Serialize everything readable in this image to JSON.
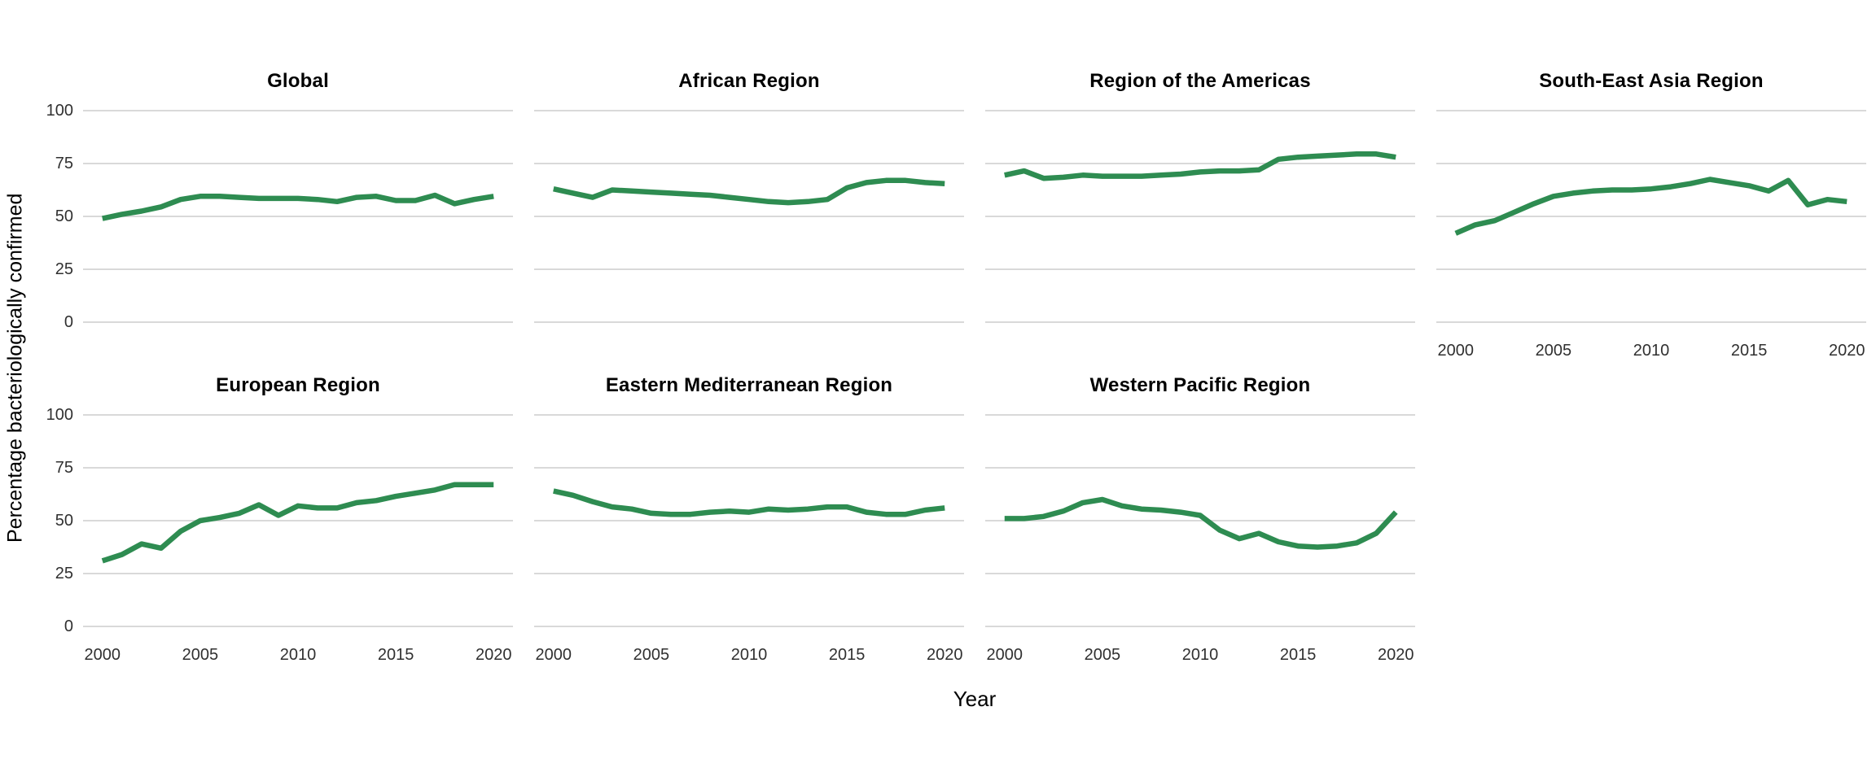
{
  "figure": {
    "y_axis_title": "Percentage bacteriologically confirmed",
    "x_axis_title": "Year",
    "y_ticks": [
      100,
      75,
      50,
      25,
      0
    ],
    "x_ticks": [
      2000,
      2005,
      2010,
      2015,
      2020
    ],
    "line_color": "#2e8c51",
    "gridline_color": "#d9d9d9",
    "background_color": "#ffffff",
    "text_color": "#000000",
    "tick_text_color": "#303030"
  },
  "chart_data": [
    {
      "type": "line",
      "title": "Global",
      "x": [
        2000,
        2001,
        2002,
        2003,
        2004,
        2005,
        2006,
        2007,
        2008,
        2009,
        2010,
        2011,
        2012,
        2013,
        2014,
        2015,
        2016,
        2017,
        2018,
        2019,
        2020
      ],
      "values": [
        49,
        51,
        52.5,
        54.5,
        58,
        59.5,
        59.5,
        59,
        58.5,
        58.5,
        58.5,
        58,
        57,
        59,
        59.5,
        57.5,
        57.5,
        60,
        56,
        58,
        59.5
      ],
      "xlabel": "Year",
      "ylabel": "Percentage bacteriologically confirmed",
      "ylim": [
        0,
        100
      ],
      "grid": true,
      "legend": "none",
      "show_x_labels": false
    },
    {
      "type": "line",
      "title": "African Region",
      "x": [
        2000,
        2001,
        2002,
        2003,
        2004,
        2005,
        2006,
        2007,
        2008,
        2009,
        2010,
        2011,
        2012,
        2013,
        2014,
        2015,
        2016,
        2017,
        2018,
        2019,
        2020
      ],
      "values": [
        63,
        61,
        59,
        62.5,
        62,
        61.5,
        61,
        60.5,
        60,
        59,
        58,
        57,
        56.5,
        57,
        58,
        63.5,
        66,
        67,
        67,
        66,
        65.5
      ],
      "xlabel": "Year",
      "ylabel": "Percentage bacteriologically confirmed",
      "ylim": [
        0,
        100
      ],
      "grid": true,
      "legend": "none",
      "show_x_labels": false
    },
    {
      "type": "line",
      "title": "Region of the Americas",
      "x": [
        2000,
        2001,
        2002,
        2003,
        2004,
        2005,
        2006,
        2007,
        2008,
        2009,
        2010,
        2011,
        2012,
        2013,
        2014,
        2015,
        2016,
        2017,
        2018,
        2019,
        2020
      ],
      "values": [
        69.5,
        71.5,
        68,
        68.5,
        69.5,
        69,
        69,
        69,
        69.5,
        70,
        71,
        71.5,
        71.5,
        72,
        77,
        78,
        78.5,
        79,
        79.5,
        79.5,
        78
      ],
      "xlabel": "Year",
      "ylabel": "Percentage bacteriologically confirmed",
      "ylim": [
        0,
        100
      ],
      "grid": true,
      "legend": "none",
      "show_x_labels": false
    },
    {
      "type": "line",
      "title": "South-East Asia Region",
      "x": [
        2000,
        2001,
        2002,
        2003,
        2004,
        2005,
        2006,
        2007,
        2008,
        2009,
        2010,
        2011,
        2012,
        2013,
        2014,
        2015,
        2016,
        2017,
        2018,
        2019,
        2020
      ],
      "values": [
        42,
        46,
        48,
        52,
        56,
        59.5,
        61,
        62,
        62.5,
        62.5,
        63,
        64,
        65.5,
        67.5,
        66,
        64.5,
        62,
        67,
        55.5,
        58,
        57
      ],
      "xlabel": "Year",
      "ylabel": "Percentage bacteriologically confirmed",
      "ylim": [
        0,
        100
      ],
      "grid": true,
      "legend": "none",
      "show_x_labels": true
    },
    {
      "type": "line",
      "title": "European Region",
      "x": [
        2000,
        2001,
        2002,
        2003,
        2004,
        2005,
        2006,
        2007,
        2008,
        2009,
        2010,
        2011,
        2012,
        2013,
        2014,
        2015,
        2016,
        2017,
        2018,
        2019,
        2020
      ],
      "values": [
        31,
        34,
        39,
        37,
        45,
        50,
        51.5,
        53.5,
        57.5,
        52.5,
        57,
        56,
        56,
        58.5,
        59.5,
        61.5,
        63,
        64.5,
        67,
        67,
        67
      ],
      "xlabel": "Year",
      "ylabel": "Percentage bacteriologically confirmed",
      "ylim": [
        0,
        100
      ],
      "grid": true,
      "legend": "none",
      "show_x_labels": true
    },
    {
      "type": "line",
      "title": "Eastern Mediterranean Region",
      "x": [
        2000,
        2001,
        2002,
        2003,
        2004,
        2005,
        2006,
        2007,
        2008,
        2009,
        2010,
        2011,
        2012,
        2013,
        2014,
        2015,
        2016,
        2017,
        2018,
        2019,
        2020
      ],
      "values": [
        64,
        62,
        59,
        56.5,
        55.5,
        53.5,
        53,
        53,
        54,
        54.5,
        54,
        55.5,
        55,
        55.5,
        56.5,
        56.5,
        54,
        53,
        53,
        55,
        56
      ],
      "xlabel": "Year",
      "ylabel": "Percentage bacteriologically confirmed",
      "ylim": [
        0,
        100
      ],
      "grid": true,
      "legend": "none",
      "show_x_labels": true
    },
    {
      "type": "line",
      "title": "Western Pacific Region",
      "x": [
        2000,
        2001,
        2002,
        2003,
        2004,
        2005,
        2006,
        2007,
        2008,
        2009,
        2010,
        2011,
        2012,
        2013,
        2014,
        2015,
        2016,
        2017,
        2018,
        2019,
        2020
      ],
      "values": [
        51,
        51,
        52,
        54.5,
        58.5,
        60,
        57,
        55.5,
        55,
        54,
        52.5,
        45.5,
        41.5,
        44,
        40,
        38,
        37.5,
        38,
        39.5,
        44,
        54
      ],
      "xlabel": "Year",
      "ylabel": "Percentage bacteriologically confirmed",
      "ylim": [
        0,
        100
      ],
      "grid": true,
      "legend": "none",
      "show_x_labels": true
    }
  ]
}
